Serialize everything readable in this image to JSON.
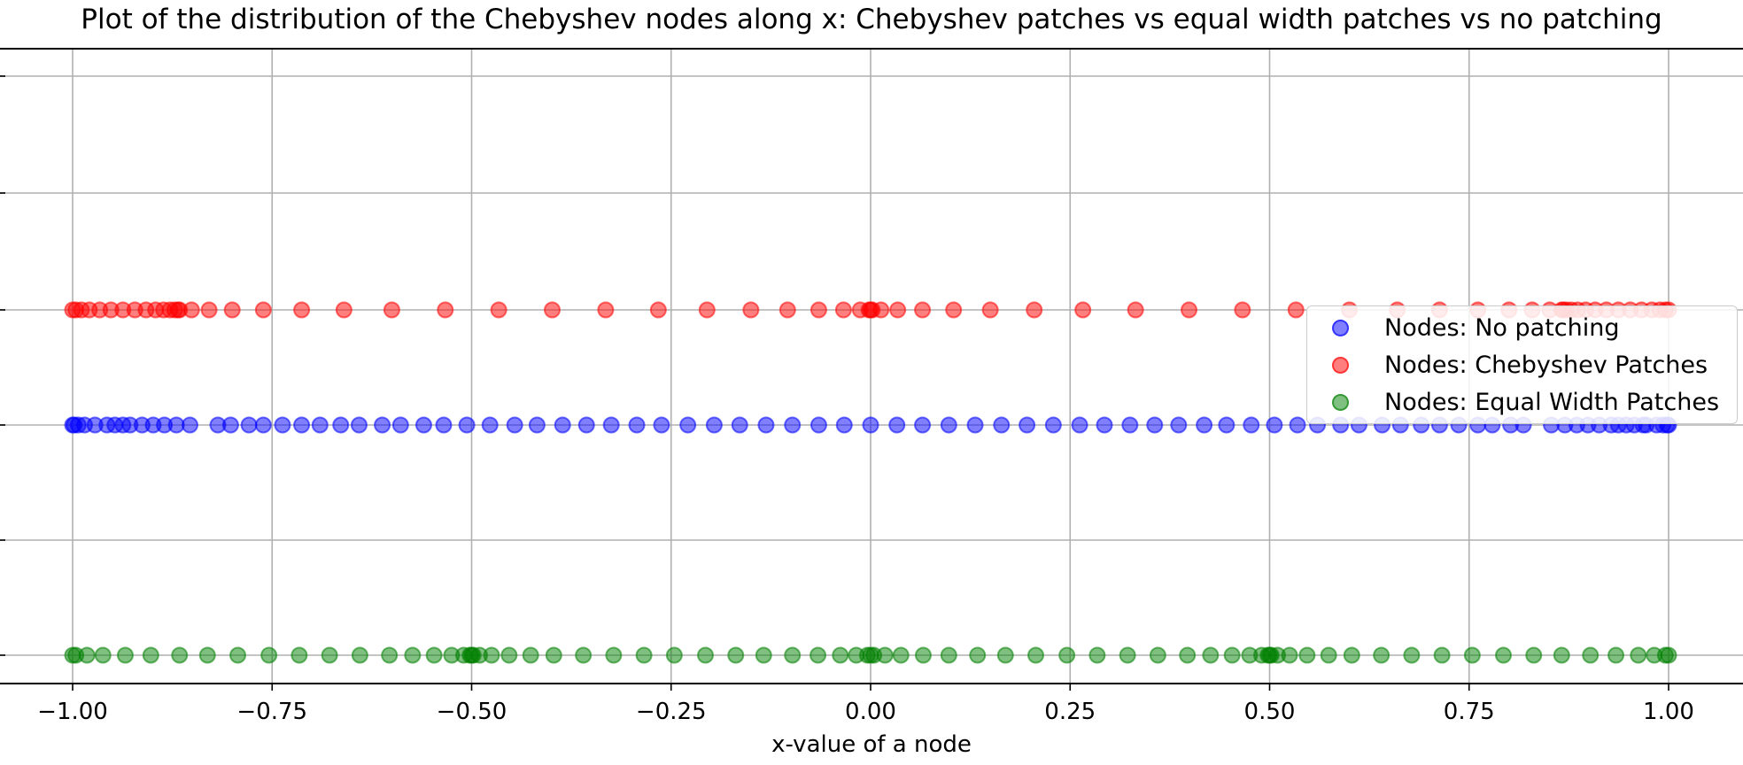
{
  "chart_data": {
    "type": "scatter",
    "title": "Plot of the distribution of the Chebyshev nodes along x: Chebyshev patches vs equal width patches vs no patching",
    "xlabel": "x-value of a node",
    "ylabel": "",
    "xlim": [
      -1.05,
      1.05
    ],
    "xticks": [
      -1.0,
      -0.75,
      -0.5,
      -0.25,
      0.0,
      0.25,
      0.5,
      0.75,
      1.0
    ],
    "xtick_labels": [
      "−1.00",
      "−0.75",
      "−0.50",
      "−0.25",
      "0.00",
      "0.25",
      "0.50",
      "0.75",
      "1.00"
    ],
    "grid": true,
    "legend_position": "center-right",
    "legend": [
      "Nodes: No patching",
      "Nodes: Chebyshev Patches",
      "Nodes: Equal Width Patches"
    ],
    "series": [
      {
        "name": "Nodes: No patching",
        "color": "#0000ff",
        "row": 2,
        "x": [
          -1.0,
          -0.998,
          -0.993,
          -0.985,
          -0.972,
          -0.957,
          -0.937,
          -0.913,
          -0.885,
          -0.853,
          -0.818,
          -0.779,
          -0.737,
          -0.69,
          -0.641,
          -0.589,
          -0.535,
          -0.477,
          -0.418,
          -0.356,
          -0.293,
          -0.229,
          -0.164,
          -0.098,
          -0.033,
          0.033,
          0.098,
          0.164,
          0.229,
          0.293,
          0.356,
          0.418,
          0.477,
          0.535,
          0.589,
          0.641,
          0.69,
          0.737,
          0.779,
          0.818,
          0.853,
          0.885,
          0.913,
          0.937,
          0.957,
          0.972,
          0.985,
          0.993,
          0.998,
          1.0,
          -0.947,
          -0.928,
          -0.899,
          -0.87,
          -0.802,
          -0.761,
          -0.713,
          -0.664,
          -0.612,
          -0.56,
          -0.506,
          -0.446,
          -0.386,
          -0.325,
          -0.262,
          -0.196,
          -0.131,
          -0.065,
          0.0,
          0.065,
          0.131,
          0.196,
          0.262,
          0.325,
          0.386,
          0.446,
          0.506,
          0.56,
          0.612,
          0.664,
          0.713,
          0.761,
          0.802,
          0.87,
          0.899,
          0.928,
          0.947,
          0.968
        ]
      },
      {
        "name": "Nodes: Chebyshev Patches",
        "color": "#ff0000",
        "row": 3,
        "x": [
          -1.0,
          -0.996,
          -0.989,
          -0.979,
          -0.966,
          -0.952,
          -0.937,
          -0.922,
          -0.908,
          -0.896,
          -0.886,
          -0.878,
          -0.872,
          -0.868,
          -0.866,
          -0.851,
          -0.829,
          -0.8,
          -0.761,
          -0.713,
          -0.66,
          -0.6,
          -0.533,
          -0.466,
          -0.399,
          -0.332,
          -0.266,
          -0.205,
          -0.15,
          -0.104,
          -0.065,
          -0.034,
          -0.013,
          -0.002,
          0.0,
          0.002,
          0.013,
          0.034,
          0.065,
          0.104,
          0.15,
          0.205,
          0.266,
          0.332,
          0.399,
          0.466,
          0.533,
          0.6,
          0.66,
          0.713,
          0.761,
          0.8,
          0.829,
          0.851,
          0.866,
          0.868,
          0.872,
          0.878,
          0.886,
          0.896,
          0.908,
          0.922,
          0.937,
          0.952,
          0.966,
          0.979,
          0.989,
          0.996,
          1.0
        ]
      },
      {
        "name": "Nodes: Equal Width Patches",
        "color": "#008000",
        "row": 0,
        "x": [
          -1.0,
          -0.996,
          -0.982,
          -0.962,
          -0.934,
          -0.902,
          -0.866,
          -0.831,
          -0.793,
          -0.754,
          -0.716,
          -0.678,
          -0.64,
          -0.603,
          -0.574,
          -0.547,
          -0.525,
          -0.51,
          -0.502,
          -0.5,
          -0.498,
          -0.49,
          -0.475,
          -0.453,
          -0.426,
          -0.397,
          -0.36,
          -0.322,
          -0.284,
          -0.246,
          -0.207,
          -0.169,
          -0.134,
          -0.098,
          -0.066,
          -0.038,
          -0.018,
          -0.004,
          0.0,
          0.004,
          0.018,
          0.038,
          0.066,
          0.098,
          0.134,
          0.169,
          0.207,
          0.246,
          0.284,
          0.322,
          0.36,
          0.397,
          0.426,
          0.453,
          0.475,
          0.49,
          0.498,
          0.5,
          0.502,
          0.51,
          0.525,
          0.547,
          0.574,
          0.603,
          0.64,
          0.678,
          0.716,
          0.754,
          0.793,
          0.831,
          0.866,
          0.902,
          0.934,
          0.962,
          0.982,
          0.996,
          1.0
        ]
      }
    ]
  }
}
